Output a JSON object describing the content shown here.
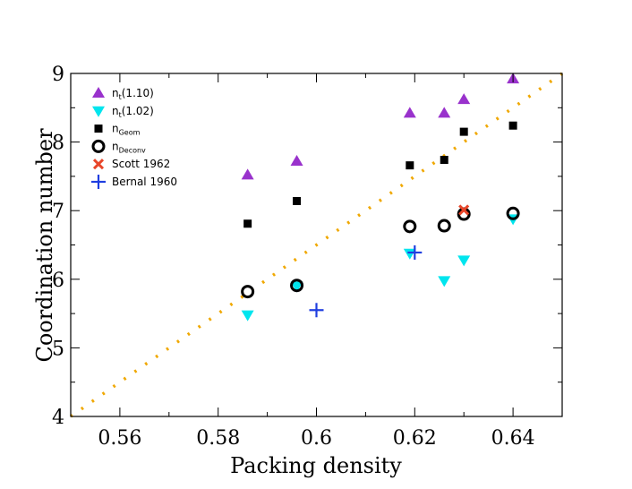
{
  "chart_data": {
    "type": "scatter",
    "title": "",
    "xlabel": "Packing density",
    "ylabel": "Coordination number",
    "xlim": [
      0.55,
      0.65
    ],
    "ylim": [
      4,
      9
    ],
    "xticks": [
      0.56,
      0.58,
      0.6,
      0.62,
      0.64
    ],
    "xtick_labels": [
      "0.56",
      "0.58",
      "0.6",
      "0.62",
      "0.64"
    ],
    "yticks": [
      4,
      5,
      6,
      7,
      8,
      9
    ],
    "ytick_labels": [
      "4",
      "5",
      "6",
      "7",
      "8",
      "9"
    ],
    "grid": false,
    "legend_position": "top-left",
    "series": [
      {
        "name": "n_t(1.10)",
        "label_main": "n",
        "label_sub": "t",
        "label_rest": "(1.10)",
        "marker": "triangle-up",
        "color": "#9932cc",
        "points": [
          [
            0.586,
            7.52
          ],
          [
            0.596,
            7.72
          ],
          [
            0.619,
            8.42
          ],
          [
            0.626,
            8.42
          ],
          [
            0.63,
            8.62
          ],
          [
            0.64,
            8.92
          ]
        ]
      },
      {
        "name": "n_t(1.02)",
        "label_main": "n",
        "label_sub": "t",
        "label_rest": "(1.02)",
        "marker": "triangle-down",
        "color": "#00e5ee",
        "points": [
          [
            0.586,
            5.48
          ],
          [
            0.596,
            5.9
          ],
          [
            0.619,
            6.38
          ],
          [
            0.626,
            5.98
          ],
          [
            0.63,
            6.28
          ],
          [
            0.64,
            6.88
          ]
        ]
      },
      {
        "name": "n_Geom",
        "label_main": "n",
        "label_sub": "Geom",
        "label_rest": "",
        "marker": "square",
        "color": "#000000",
        "points": [
          [
            0.586,
            6.81
          ],
          [
            0.596,
            7.14
          ],
          [
            0.619,
            7.66
          ],
          [
            0.626,
            7.74
          ],
          [
            0.63,
            8.15
          ],
          [
            0.64,
            8.24
          ]
        ]
      },
      {
        "name": "n_Deconv",
        "label_main": "n",
        "label_sub": "Deconv",
        "label_rest": "",
        "marker": "circle",
        "color": "#000000",
        "points": [
          [
            0.586,
            5.82
          ],
          [
            0.596,
            5.91
          ],
          [
            0.619,
            6.77
          ],
          [
            0.626,
            6.78
          ],
          [
            0.63,
            6.95
          ],
          [
            0.64,
            6.96
          ]
        ]
      },
      {
        "name": "Scott 1962",
        "label_main": "Scott 1962",
        "label_sub": "",
        "label_rest": "",
        "marker": "x",
        "color": "#e8462a",
        "points": [
          [
            0.63,
            7.01
          ]
        ]
      },
      {
        "name": "Bernal 1960",
        "label_main": "Bernal 1960",
        "label_sub": "",
        "label_rest": "",
        "marker": "plus",
        "color": "#1f3ee0",
        "points": [
          [
            0.6,
            5.55
          ],
          [
            0.62,
            6.39
          ]
        ]
      }
    ],
    "reference_line": {
      "style": "dotted",
      "color": "#f0a800",
      "points": [
        [
          0.55,
          4.0
        ],
        [
          0.65,
          9.0
        ]
      ]
    }
  }
}
